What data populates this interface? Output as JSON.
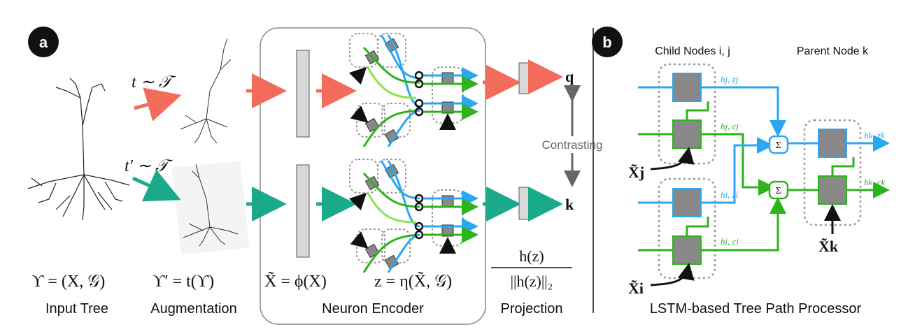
{
  "panel_a": {
    "badge": "a",
    "caption_input": "Input Tree",
    "caption_aug": "Augmentation",
    "caption_encoder": "Neuron Encoder",
    "caption_projection": "Projection",
    "eq_input": "ϒ = (X, 𝒢)",
    "eq_aug": "ϒ′ = t(ϒ)",
    "eq_phi": "X̃ = ϕ(X)",
    "eq_eta": "z = η(X̃, 𝒢)",
    "proj_num": "h(z)",
    "proj_den": "||h(z)||₂",
    "t_sample": "t ∼ 𝒯",
    "t_prime_sample": "t′ ∼ 𝒯",
    "out_q": "q",
    "out_k": "k",
    "contrasting": "Contrasting"
  },
  "panel_b": {
    "badge": "b",
    "child_title": "Child Nodes i, j",
    "parent_title": "Parent Node k",
    "caption": "LSTM-based Tree Path Processor",
    "sum_symbol": "Σ",
    "h_j_z_j": "hj, zj",
    "h_j_c_j": "hj, cj",
    "h_i_z_i": "hi, zi",
    "h_i_c_i": "hi, ci",
    "h_k_z_k": "hk, zk",
    "h_k_c_k": "hk, ck",
    "x_j": "X̃j",
    "x_i": "X̃i",
    "x_k": "X̃k"
  },
  "colors": {
    "red": "#f26b5b",
    "teal": "#1ba98c",
    "blue": "#2aa7f0",
    "green": "#2db31b",
    "light_green": "#8de34a",
    "box_gray": "#888888",
    "bar_gray": "#d9d9d9"
  }
}
